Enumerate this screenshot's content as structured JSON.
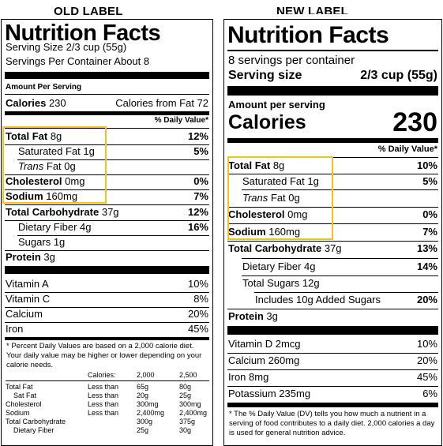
{
  "old_heading": "OLD LABEL",
  "new_heading": "NEW LABEL",
  "old": {
    "title": "Nutrition Facts",
    "serving_size": "Serving Size 2/3 cup (55g)",
    "servings_per_container": "Servings Per Container About 8",
    "amount_per_serving": "Amount Per Serving",
    "calories_label": "Calories",
    "calories_value": "230",
    "calories_from_fat": "Calories from Fat 72",
    "daily_value_header": "% Daily Value*",
    "nutrients": [
      {
        "name": "Total Fat",
        "amount": "8g",
        "dv": "12%"
      },
      {
        "name": "Saturated Fat",
        "amount": "1g",
        "dv": "5%"
      },
      {
        "name": "Trans",
        "suffix": "Fat 0g",
        "dv": ""
      },
      {
        "name": "Cholesterol",
        "amount": "0mg",
        "dv": "0%"
      },
      {
        "name": "Sodium",
        "amount": "160mg",
        "dv": "7%"
      },
      {
        "name": "Total Carbohydrate",
        "amount": "37g",
        "dv": "12%"
      },
      {
        "name": "Dietary Fiber",
        "amount": "4g",
        "dv": "16%"
      },
      {
        "name": "Sugars",
        "amount": "1g",
        "dv": ""
      },
      {
        "name": "Protein",
        "amount": "3g",
        "dv": ""
      }
    ],
    "vitamins": [
      {
        "name": "Vitamin A",
        "dv": "10%"
      },
      {
        "name": "Vitamin C",
        "dv": "8%"
      },
      {
        "name": "Calcium",
        "dv": "20%"
      },
      {
        "name": "Iron",
        "dv": "45%"
      }
    ],
    "footnote": "* Percent Daily Values are based on a 2,000 calorie diet. Your daily value may be higher or lower depending on your calorie needs.",
    "table": {
      "header": [
        "Calories:",
        "2,000",
        "2,500"
      ],
      "rows": [
        [
          "Total Fat",
          "Less than",
          "65g",
          "80g"
        ],
        [
          "Sat Fat",
          "Less than",
          "20g",
          "25g"
        ],
        [
          "Cholesterol",
          "Less than",
          "300mg",
          "300mg"
        ],
        [
          "Sodium",
          "Less than",
          "2,400mg",
          "2,400mg"
        ],
        [
          "Total Carbohydrate",
          "",
          "300g",
          "375g"
        ],
        [
          "Dietary Fiber",
          "",
          "25g",
          "30g"
        ]
      ]
    }
  },
  "new": {
    "title": "Nutrition Facts",
    "servings_per_container": "8 servings per container",
    "serving_size_label": "Serving size",
    "serving_size_value": "2/3 cup (55g)",
    "amount_per_serving": "Amount per serving",
    "calories_label": "Calories",
    "calories_value": "230",
    "daily_value_header": "% Daily Value*",
    "nutrients": [
      {
        "name": "Total Fat",
        "amount": "8g",
        "dv": "10%"
      },
      {
        "name": "Saturated Fat",
        "amount": "1g",
        "dv": "5%"
      },
      {
        "name": "Trans",
        "suffix": "Fat 0g",
        "dv": ""
      },
      {
        "name": "Cholesterol",
        "amount": "0mg",
        "dv": "0%"
      },
      {
        "name": "Sodium",
        "amount": "160mg",
        "dv": "7%"
      },
      {
        "name": "Total Carbohydrate",
        "amount": "37g",
        "dv": "13%"
      },
      {
        "name": "Dietary Fiber",
        "amount": "4g",
        "dv": "14%"
      },
      {
        "name": "Total Sugars",
        "amount": "12g",
        "dv": ""
      },
      {
        "name": "Includes 10g Added Sugars",
        "amount": "",
        "dv": "20%"
      },
      {
        "name": "Protein",
        "amount": "3g",
        "dv": ""
      }
    ],
    "vitamins": [
      {
        "name": "Vitamin D 2mcg",
        "dv": "10%"
      },
      {
        "name": "Calcium 260mg",
        "dv": "20%"
      },
      {
        "name": "Iron 8mg",
        "dv": "45%"
      },
      {
        "name": "Potassium 235mg",
        "dv": "6%"
      }
    ],
    "footnote": "* The % Daily Value (DV) tells you how much a nutrient in a serving of food contributes to a daily diet. 2,000 calories a day is used for general nutrition advice."
  },
  "highlight_color": "#f5c21b"
}
